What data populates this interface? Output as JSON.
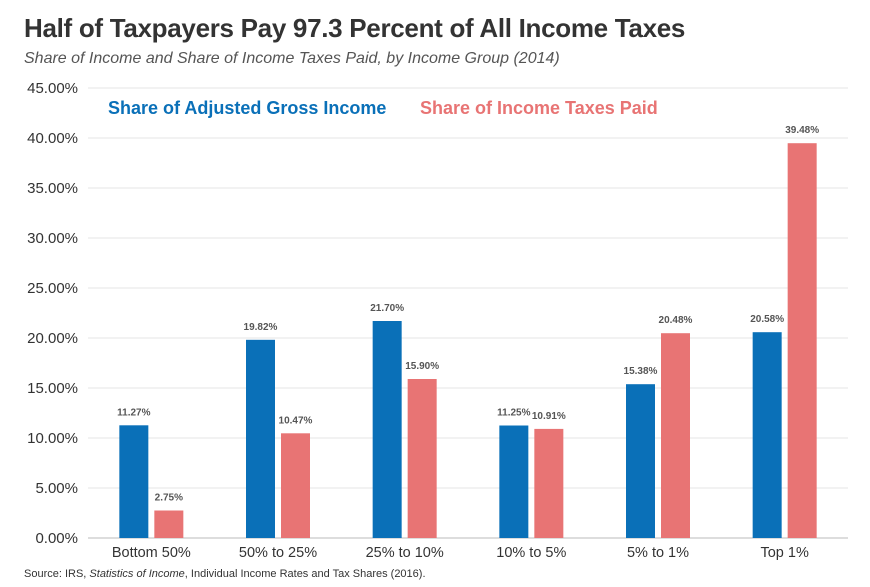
{
  "title": "Half of Taxpayers Pay 97.3 Percent of All Income Taxes",
  "subtitle": "Share of Income and Share of Income Taxes Paid, by Income Group (2014)",
  "source": {
    "prefix": "Source: IRS, ",
    "italic": "Statistics of Income",
    "suffix": ", Individual Income Rates and Tax Shares (2016)."
  },
  "chart_data": {
    "type": "bar",
    "categories": [
      "Bottom 50%",
      "50% to 25%",
      "25% to 10%",
      "10% to 5%",
      "5% to 1%",
      "Top 1%"
    ],
    "series": [
      {
        "name": "Share of Adjusted Gross Income",
        "color": "#0a70b8",
        "values": [
          11.27,
          19.82,
          21.7,
          11.25,
          15.38,
          20.58
        ],
        "labels": [
          "11.27%",
          "19.82%",
          "21.70%",
          "11.25%",
          "15.38%",
          "20.58%"
        ]
      },
      {
        "name": "Share of Income Taxes Paid",
        "color": "#e87474",
        "values": [
          2.75,
          10.47,
          15.9,
          10.91,
          20.48,
          39.48
        ],
        "labels": [
          "2.75%",
          "10.47%",
          "15.90%",
          "10.91%",
          "20.48%",
          "39.48%"
        ]
      }
    ],
    "ylim": [
      0,
      45
    ],
    "yticks": [
      0,
      5,
      10,
      15,
      20,
      25,
      30,
      35,
      40,
      45
    ],
    "ytick_labels": [
      "0.00%",
      "5.00%",
      "10.00%",
      "15.00%",
      "20.00%",
      "25.00%",
      "30.00%",
      "35.00%",
      "40.00%",
      "45.00%"
    ],
    "grid": true,
    "legend": "top-left",
    "xlabel": "",
    "ylabel": ""
  }
}
